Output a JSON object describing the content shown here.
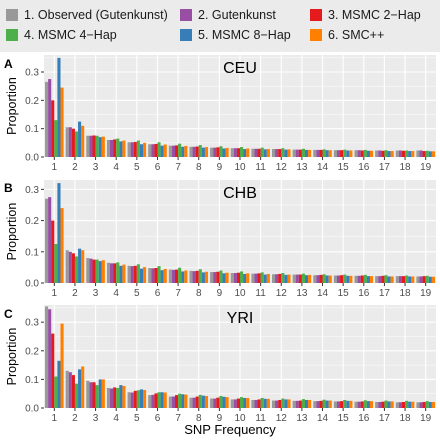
{
  "legend": [
    {
      "label": "1. Observed (Gutenkunst)",
      "color": "#999999"
    },
    {
      "label": "2. Gutenkunst",
      "color": "#984ea3"
    },
    {
      "label": "3. MSMC 2−Hap",
      "color": "#e41a1c"
    },
    {
      "label": "4. MSMC 4−Hap",
      "color": "#4daf4a"
    },
    {
      "label": "5. MSMC 8−Hap",
      "color": "#377eb8"
    },
    {
      "label": "6. SMC++",
      "color": "#ff7f00"
    }
  ],
  "xlabel": "SNP Frequency",
  "ylabel": "Proportion",
  "chart_data": [
    {
      "type": "bar",
      "panel": "A",
      "title": "CEU",
      "xlabel": "SNP Frequency",
      "ylabel": "Proportion",
      "ylim": [
        0,
        0.36
      ],
      "yticks": [
        0.0,
        0.1,
        0.2,
        0.3
      ],
      "categories": [
        "1",
        "2",
        "3",
        "4",
        "5",
        "6",
        "7",
        "8",
        "9",
        "10",
        "11",
        "12",
        "13",
        "14",
        "15",
        "16",
        "17",
        "18",
        "19"
      ],
      "series": [
        {
          "name": "1. Observed (Gutenkunst)",
          "values": [
            0.265,
            0.105,
            0.075,
            0.06,
            0.052,
            0.045,
            0.04,
            0.036,
            0.033,
            0.031,
            0.029,
            0.028,
            0.026,
            0.025,
            0.024,
            0.024,
            0.023,
            0.023,
            0.023
          ]
        },
        {
          "name": "2. Gutenkunst",
          "values": [
            0.275,
            0.105,
            0.075,
            0.06,
            0.052,
            0.045,
            0.04,
            0.036,
            0.033,
            0.031,
            0.029,
            0.028,
            0.026,
            0.025,
            0.024,
            0.024,
            0.023,
            0.023,
            0.023
          ]
        },
        {
          "name": "3. MSMC 2−Hap",
          "values": [
            0.2,
            0.1,
            0.076,
            0.062,
            0.053,
            0.046,
            0.041,
            0.037,
            0.034,
            0.031,
            0.029,
            0.028,
            0.026,
            0.025,
            0.024,
            0.023,
            0.022,
            0.022,
            0.021
          ]
        },
        {
          "name": "4. MSMC 4−Hap",
          "values": [
            0.13,
            0.09,
            0.075,
            0.065,
            0.058,
            0.052,
            0.047,
            0.042,
            0.038,
            0.035,
            0.033,
            0.031,
            0.029,
            0.027,
            0.026,
            0.025,
            0.024,
            0.023,
            0.022
          ]
        },
        {
          "name": "5. MSMC 8−Hap",
          "values": [
            0.35,
            0.125,
            0.07,
            0.055,
            0.045,
            0.04,
            0.036,
            0.033,
            0.03,
            0.028,
            0.027,
            0.026,
            0.025,
            0.024,
            0.023,
            0.022,
            0.021,
            0.021,
            0.02
          ]
        },
        {
          "name": "6. SMC++",
          "values": [
            0.245,
            0.11,
            0.072,
            0.058,
            0.05,
            0.044,
            0.039,
            0.035,
            0.032,
            0.03,
            0.028,
            0.027,
            0.025,
            0.024,
            0.023,
            0.022,
            0.021,
            0.021,
            0.02
          ]
        }
      ]
    },
    {
      "type": "bar",
      "panel": "B",
      "title": "CHB",
      "xlabel": "SNP Frequency",
      "ylabel": "Proportion",
      "ylim": [
        0,
        0.33
      ],
      "yticks": [
        0.0,
        0.1,
        0.2,
        0.3
      ],
      "categories": [
        "1",
        "2",
        "3",
        "4",
        "5",
        "6",
        "7",
        "8",
        "9",
        "10",
        "11",
        "12",
        "13",
        "14",
        "15",
        "16",
        "17",
        "18",
        "19"
      ],
      "series": [
        {
          "name": "1. Observed (Gutenkunst)",
          "values": [
            0.27,
            0.105,
            0.08,
            0.065,
            0.055,
            0.048,
            0.043,
            0.039,
            0.035,
            0.032,
            0.03,
            0.028,
            0.027,
            0.025,
            0.024,
            0.023,
            0.022,
            0.022,
            0.021
          ]
        },
        {
          "name": "2. Gutenkunst",
          "values": [
            0.275,
            0.1,
            0.078,
            0.063,
            0.054,
            0.047,
            0.042,
            0.038,
            0.035,
            0.032,
            0.03,
            0.028,
            0.027,
            0.025,
            0.024,
            0.023,
            0.022,
            0.022,
            0.021
          ]
        },
        {
          "name": "3. MSMC 2−Hap",
          "values": [
            0.2,
            0.095,
            0.075,
            0.063,
            0.055,
            0.048,
            0.043,
            0.039,
            0.036,
            0.033,
            0.031,
            0.029,
            0.027,
            0.026,
            0.025,
            0.024,
            0.023,
            0.022,
            0.022
          ]
        },
        {
          "name": "4. MSMC 4−Hap",
          "values": [
            0.125,
            0.085,
            0.075,
            0.066,
            0.06,
            0.054,
            0.049,
            0.044,
            0.04,
            0.037,
            0.034,
            0.032,
            0.03,
            0.028,
            0.027,
            0.026,
            0.025,
            0.024,
            0.023
          ]
        },
        {
          "name": "5. MSMC 8−Hap",
          "values": [
            0.32,
            0.11,
            0.07,
            0.055,
            0.046,
            0.041,
            0.037,
            0.034,
            0.031,
            0.029,
            0.027,
            0.026,
            0.025,
            0.024,
            0.023,
            0.022,
            0.021,
            0.021,
            0.02
          ]
        },
        {
          "name": "6. SMC++",
          "values": [
            0.24,
            0.105,
            0.073,
            0.059,
            0.051,
            0.045,
            0.04,
            0.036,
            0.033,
            0.031,
            0.029,
            0.027,
            0.026,
            0.024,
            0.023,
            0.022,
            0.021,
            0.021,
            0.02
          ]
        }
      ]
    },
    {
      "type": "bar",
      "panel": "C",
      "title": "YRI",
      "xlabel": "SNP Frequency",
      "ylabel": "Proportion",
      "ylim": [
        0,
        0.36
      ],
      "yticks": [
        0.0,
        0.1,
        0.2,
        0.3
      ],
      "categories": [
        "1",
        "2",
        "3",
        "4",
        "5",
        "6",
        "7",
        "8",
        "9",
        "10",
        "11",
        "12",
        "13",
        "14",
        "15",
        "16",
        "17",
        "18",
        "19"
      ],
      "series": [
        {
          "name": "1. Observed (Gutenkunst)",
          "values": [
            0.355,
            0.13,
            0.095,
            0.07,
            0.055,
            0.045,
            0.04,
            0.036,
            0.033,
            0.03,
            0.028,
            0.026,
            0.025,
            0.024,
            0.023,
            0.022,
            0.021,
            0.02,
            0.02
          ]
        },
        {
          "name": "2. Gutenkunst",
          "values": [
            0.345,
            0.125,
            0.09,
            0.068,
            0.054,
            0.046,
            0.04,
            0.036,
            0.033,
            0.03,
            0.028,
            0.026,
            0.025,
            0.024,
            0.023,
            0.022,
            0.021,
            0.02,
            0.02
          ]
        },
        {
          "name": "3. MSMC 2−Hap",
          "values": [
            0.26,
            0.115,
            0.09,
            0.072,
            0.06,
            0.051,
            0.045,
            0.04,
            0.036,
            0.033,
            0.03,
            0.028,
            0.026,
            0.025,
            0.024,
            0.023,
            0.022,
            0.021,
            0.021
          ]
        },
        {
          "name": "4. MSMC 4−Hap",
          "values": [
            0.11,
            0.085,
            0.08,
            0.07,
            0.062,
            0.055,
            0.05,
            0.046,
            0.042,
            0.038,
            0.035,
            0.033,
            0.031,
            0.029,
            0.028,
            0.027,
            0.026,
            0.025,
            0.024
          ]
        },
        {
          "name": "5. MSMC 8−Hap",
          "values": [
            0.165,
            0.135,
            0.1,
            0.08,
            0.065,
            0.055,
            0.048,
            0.043,
            0.039,
            0.035,
            0.032,
            0.03,
            0.028,
            0.026,
            0.025,
            0.024,
            0.023,
            0.022,
            0.021
          ]
        },
        {
          "name": "6. SMC++",
          "values": [
            0.295,
            0.145,
            0.1,
            0.077,
            0.063,
            0.054,
            0.047,
            0.042,
            0.038,
            0.035,
            0.032,
            0.03,
            0.028,
            0.026,
            0.025,
            0.024,
            0.023,
            0.022,
            0.021
          ]
        }
      ]
    }
  ]
}
